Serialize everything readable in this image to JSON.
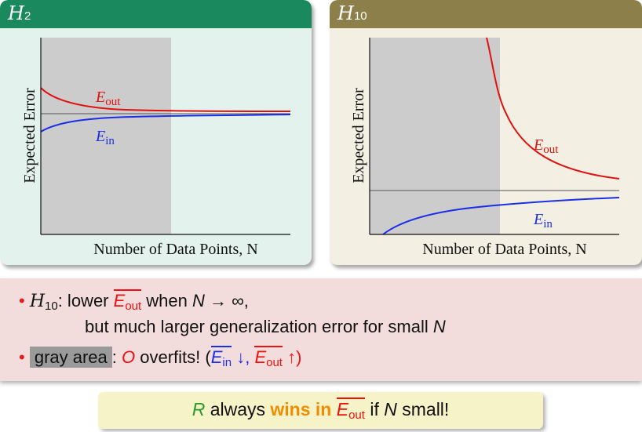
{
  "left_panel": {
    "title_main": "H",
    "title_sub": "2",
    "ylabel": "Expected Error",
    "xlabel": "Number of Data Points, N",
    "eout_label": "E",
    "eout_sub": "out",
    "ein_label": "E",
    "ein_sub": "in",
    "colors": {
      "head": "#1a8a5e",
      "bg": "#e3f2ec",
      "eout": "#e01010",
      "ein": "#1a2ee8",
      "shade": "#cccccc"
    }
  },
  "right_panel": {
    "title_main": "H",
    "title_sub": "10",
    "ylabel": "Expected Error",
    "xlabel": "Number of Data Points, N",
    "eout_label": "E",
    "eout_sub": "out",
    "ein_label": "E",
    "ein_sub": "in",
    "colors": {
      "head": "#8c7f4a",
      "bg": "#f3efe2",
      "eout": "#e01010",
      "ein": "#1a2ee8",
      "shade": "#cccccc"
    }
  },
  "bullets": {
    "b1_h": "H",
    "b1_hsub": "10",
    "b1_colon": ": lower ",
    "b1_e": "E",
    "b1_esub": "out",
    "b1_when": " when ",
    "b1_n": "N",
    "b1_arrow": " → ∞,",
    "b1_line2a": "but much larger generalization error for small ",
    "b1_line2n": "N",
    "b2_gray": "gray area",
    "b2_colon": ": ",
    "b2_o": "O",
    "b2_overfits": " overfits! (",
    "b2_ein": "E",
    "b2_einsub": "in",
    "b2_down": " ↓, ",
    "b2_eout": "E",
    "b2_eoutsub": "out",
    "b2_up": " ↑)"
  },
  "footer": {
    "r": "R",
    "always": " always ",
    "wins": "wins in ",
    "e": "E",
    "esub": "out",
    "if": " if ",
    "n": "N",
    "small": " small!"
  }
}
